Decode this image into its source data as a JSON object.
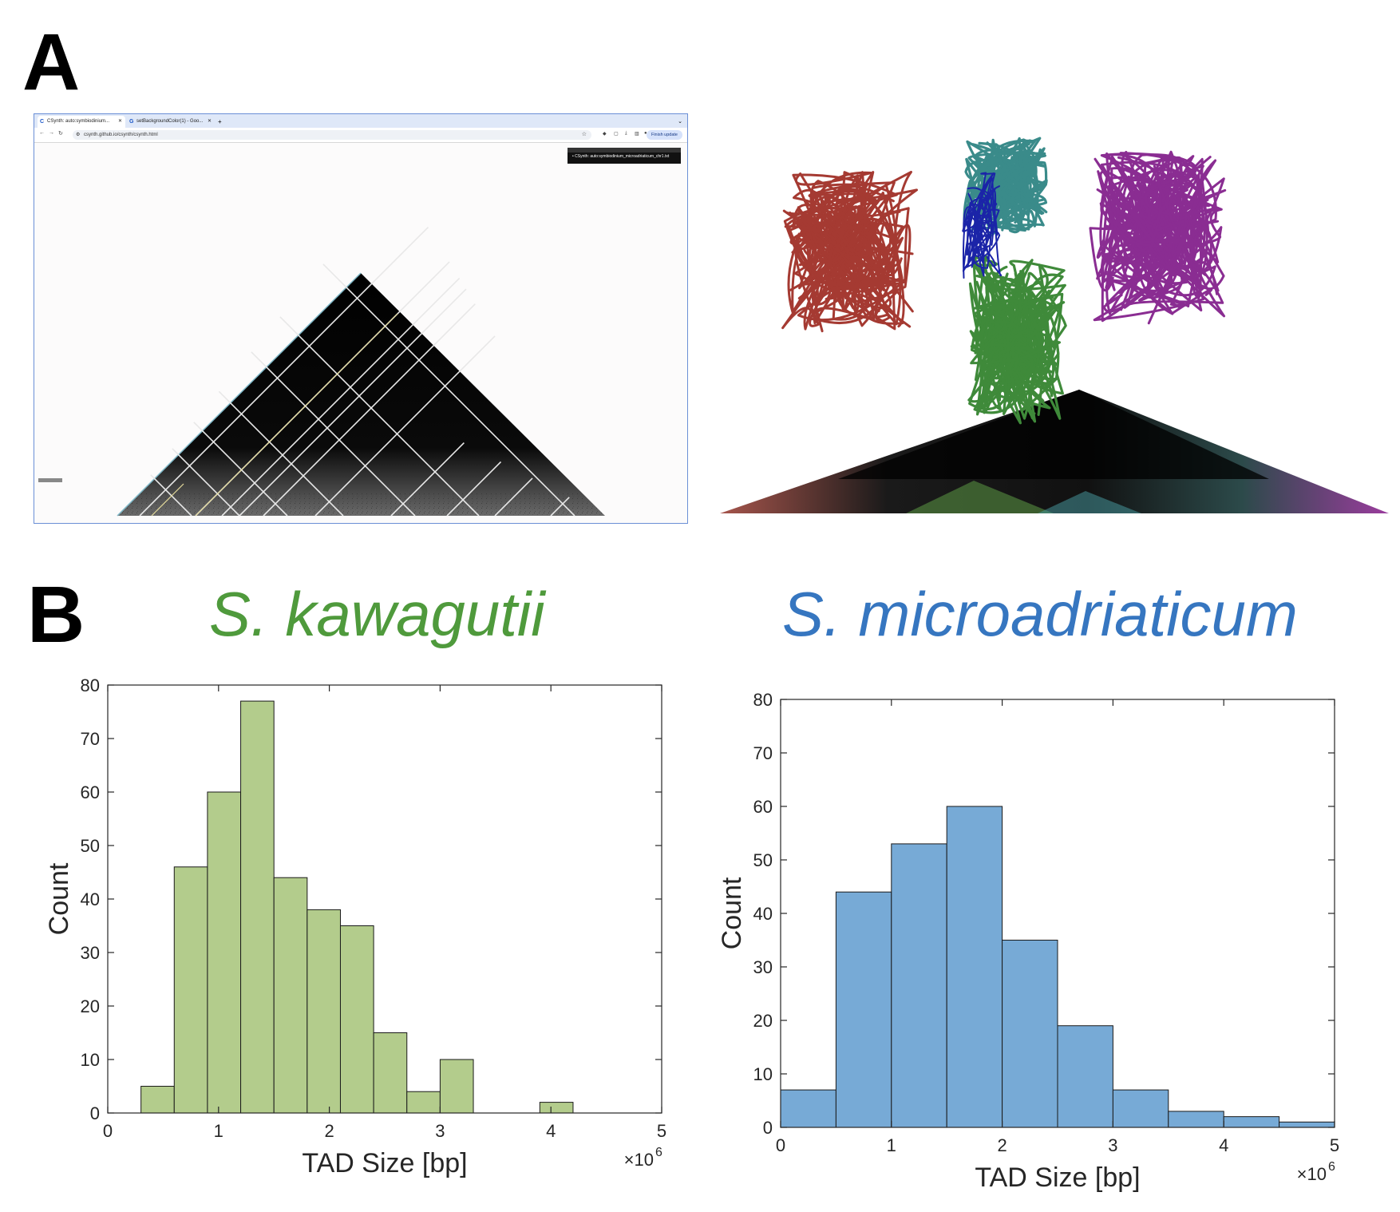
{
  "panels": {
    "a": "A",
    "b": "B"
  },
  "browser": {
    "tabs": [
      {
        "label": "CSynth: auto:symbiodinium..."
      },
      {
        "label": "setBackgroundColor(1) - Goo..."
      }
    ],
    "address": "csynth.github.io/csynth/csynth.html",
    "update_label": "Finish update",
    "file_item": "CSynth: auto:symbiodinium_microadriaticum_chr1.txt"
  },
  "species": {
    "left": "S. kawagutii",
    "right": "S. microadriaticum"
  },
  "colors": {
    "kawagutii_text": "#4f9a3c",
    "kawagutii_bar": "#b3cc8c",
    "microadriaticum_text": "#3676c0",
    "microadriaticum_bar": "#77aad6",
    "chain_red": "#a53a32",
    "chain_teal": "#3a8b8a",
    "chain_green": "#3f8a3a",
    "chain_purple": "#8a2d92",
    "chain_blue": "#1b24a8"
  },
  "chart_data": [
    {
      "type": "bar",
      "title": "S. kawagutii",
      "xlabel": "TAD Size [bp]",
      "ylabel": "Count",
      "x_exponent": "×10",
      "x_exponent_power": "6",
      "xlim": [
        0,
        5
      ],
      "ylim": [
        0,
        80
      ],
      "xticks": [
        "0",
        "1",
        "2",
        "3",
        "4",
        "5"
      ],
      "yticks": [
        "0",
        "10",
        "20",
        "30",
        "40",
        "50",
        "60",
        "70",
        "80"
      ],
      "bin_width": 0.3,
      "bin_start": 0.3,
      "values": [
        5,
        46,
        60,
        77,
        44,
        38,
        35,
        15,
        4,
        10,
        0,
        0,
        2
      ]
    },
    {
      "type": "bar",
      "title": "S. microadriaticum",
      "xlabel": "TAD Size [bp]",
      "ylabel": "Count",
      "x_exponent": "×10",
      "x_exponent_power": "6",
      "xlim": [
        0,
        5
      ],
      "ylim": [
        0,
        80
      ],
      "xticks": [
        "0",
        "1",
        "2",
        "3",
        "4",
        "5"
      ],
      "yticks": [
        "0",
        "10",
        "20",
        "30",
        "40",
        "50",
        "60",
        "70",
        "80"
      ],
      "bin_width": 0.5,
      "bin_start": 0,
      "values": [
        7,
        44,
        53,
        60,
        35,
        19,
        7,
        3,
        2,
        1
      ]
    }
  ]
}
